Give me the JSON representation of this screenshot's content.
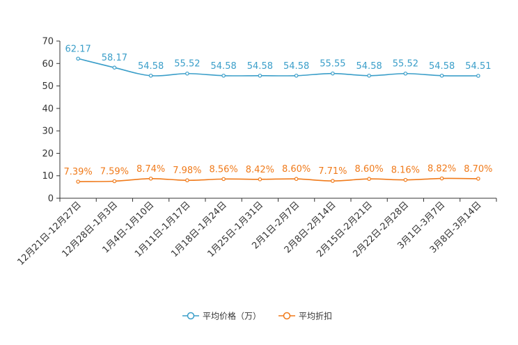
{
  "chart_data": {
    "type": "line",
    "title": "",
    "xlabel": "",
    "ylabel": "",
    "ylim": [
      0,
      70
    ],
    "yticks": [
      0,
      10,
      20,
      30,
      40,
      50,
      60,
      70
    ],
    "grid": false,
    "legend_position": "bottom-center",
    "categories": [
      "12月21日-12月27日",
      "12月28日-1月3日",
      "1月4日-1月10日",
      "1月11日-1月17日",
      "1月18日-1月24日",
      "1月25日-1月31日",
      "2月1日-2月7日",
      "2月8日-2月14日",
      "2月15日-2月21日",
      "2月22日-2月28日",
      "3月1日-3月7日",
      "3月8日-3月14日"
    ],
    "series": [
      {
        "name": "平均价格（万）",
        "color": "#3a9ec9",
        "values": [
          62.17,
          58.17,
          54.58,
          55.52,
          54.58,
          54.58,
          54.58,
          55.55,
          54.58,
          55.52,
          54.58,
          54.51
        ],
        "labels": [
          "62.17",
          "58.17",
          "54.58",
          "55.52",
          "54.58",
          "54.58",
          "54.58",
          "55.55",
          "54.58",
          "55.52",
          "54.58",
          "54.51"
        ]
      },
      {
        "name": "平均折扣",
        "color": "#f07a1a",
        "values": [
          7.39,
          7.59,
          8.74,
          7.98,
          8.56,
          8.42,
          8.6,
          7.71,
          8.6,
          8.16,
          8.82,
          8.7
        ],
        "labels": [
          "7.39%",
          "7.59%",
          "8.74%",
          "7.98%",
          "8.56%",
          "8.42%",
          "8.60%",
          "7.71%",
          "8.60%",
          "8.16%",
          "8.82%",
          "8.70%"
        ]
      }
    ]
  }
}
